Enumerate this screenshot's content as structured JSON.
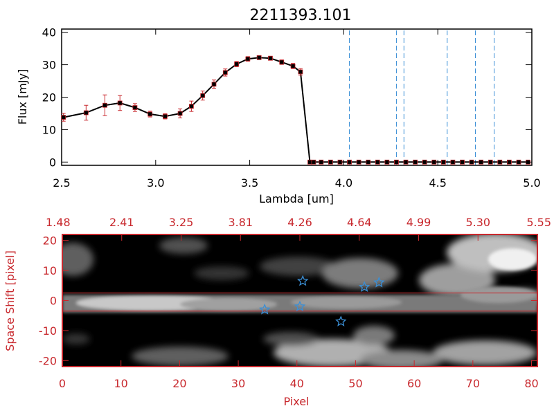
{
  "chart_data": [
    {
      "type": "line",
      "title": "2211393.101",
      "xlabel": "Lambda [um]",
      "ylabel": "Flux [mJy]",
      "xlim": [
        2.5,
        5.0
      ],
      "ylim": [
        -1,
        41
      ],
      "x_ticks": [
        "2.5",
        "3.0",
        "3.5",
        "4.0",
        "4.5",
        "5.0"
      ],
      "y_ticks": [
        "0",
        "10",
        "20",
        "30",
        "40"
      ],
      "x_tick_values": [
        2.5,
        3.0,
        3.5,
        4.0,
        4.5,
        5.0
      ],
      "y_tick_values": [
        0,
        10,
        20,
        30,
        40
      ],
      "series": [
        {
          "x": [
            2.51,
            2.63,
            2.73,
            2.81,
            2.89,
            2.97,
            3.05,
            3.13,
            3.19,
            3.25,
            3.31,
            3.37,
            3.43,
            3.49,
            3.55,
            3.61,
            3.67,
            3.73,
            3.77,
            3.82,
            3.84,
            3.88,
            3.93,
            3.98,
            4.03,
            4.08,
            4.13,
            4.18,
            4.23,
            4.28,
            4.33,
            4.38,
            4.43,
            4.48,
            4.53,
            4.58,
            4.63,
            4.68,
            4.73,
            4.78,
            4.83,
            4.88,
            4.93,
            4.98
          ],
          "y": [
            13.8,
            15.2,
            17.5,
            18.2,
            16.8,
            14.8,
            14.1,
            15.0,
            17.2,
            20.5,
            24.0,
            27.6,
            30.2,
            31.8,
            32.2,
            32.0,
            30.8,
            29.6,
            27.8,
            0,
            0,
            0,
            0,
            0,
            0,
            0,
            0,
            0,
            0,
            0,
            0,
            0,
            0,
            0,
            0,
            0,
            0,
            0,
            0,
            0,
            0,
            0,
            0,
            0
          ],
          "yerr": [
            1.2,
            2.3,
            3.2,
            2.3,
            1.2,
            0.9,
            0.8,
            1.4,
            1.6,
            1.4,
            1.3,
            1.1,
            0.8,
            0.7,
            0.6,
            0.6,
            0.7,
            0.8,
            1.0,
            0,
            0,
            0,
            0,
            0,
            0,
            0,
            0,
            0,
            0,
            0,
            0,
            0,
            0,
            0,
            0,
            0,
            0,
            0,
            0,
            0,
            0,
            0,
            0,
            0
          ]
        }
      ],
      "vlines": [
        4.03,
        4.28,
        4.32,
        4.55,
        4.7,
        4.8
      ],
      "hline": 0,
      "colors": {
        "line": "#000000",
        "marker": "#000000",
        "errorbar": "#c8282d",
        "vline": "#3a8fd6",
        "hline": "#c8282d"
      }
    },
    {
      "type": "heatmap",
      "xlabel": "Pixel",
      "ylabel": "Space Shift [pixel]",
      "xlim": [
        0,
        81
      ],
      "ylim": [
        -22,
        22
      ],
      "x_ticks": [
        "0",
        "10",
        "20",
        "30",
        "40",
        "50",
        "60",
        "70",
        "80"
      ],
      "y_ticks": [
        "-20",
        "-10",
        "0",
        "10",
        "20"
      ],
      "x_tick_values": [
        0,
        10,
        20,
        30,
        40,
        50,
        60,
        70,
        80
      ],
      "y_tick_values": [
        -20,
        -10,
        0,
        10,
        20
      ],
      "top_axis_ticks": [
        "1.48",
        "2.41",
        "3.25",
        "3.81",
        "4.26",
        "4.64",
        "4.99",
        "5.30",
        "5.55"
      ],
      "aperture_lines": [
        2.5,
        -3.5
      ],
      "stars": [
        {
          "x": 34.5,
          "y": -3
        },
        {
          "x": 40.5,
          "y": -2
        },
        {
          "x": 41,
          "y": 6.5
        },
        {
          "x": 47.5,
          "y": -7
        },
        {
          "x": 51.5,
          "y": 4.5
        },
        {
          "x": 54,
          "y": 6
        }
      ],
      "colors": {
        "frame": "#c8282d",
        "star": "#3a8fd6",
        "aperture": "#c8282d"
      }
    }
  ]
}
